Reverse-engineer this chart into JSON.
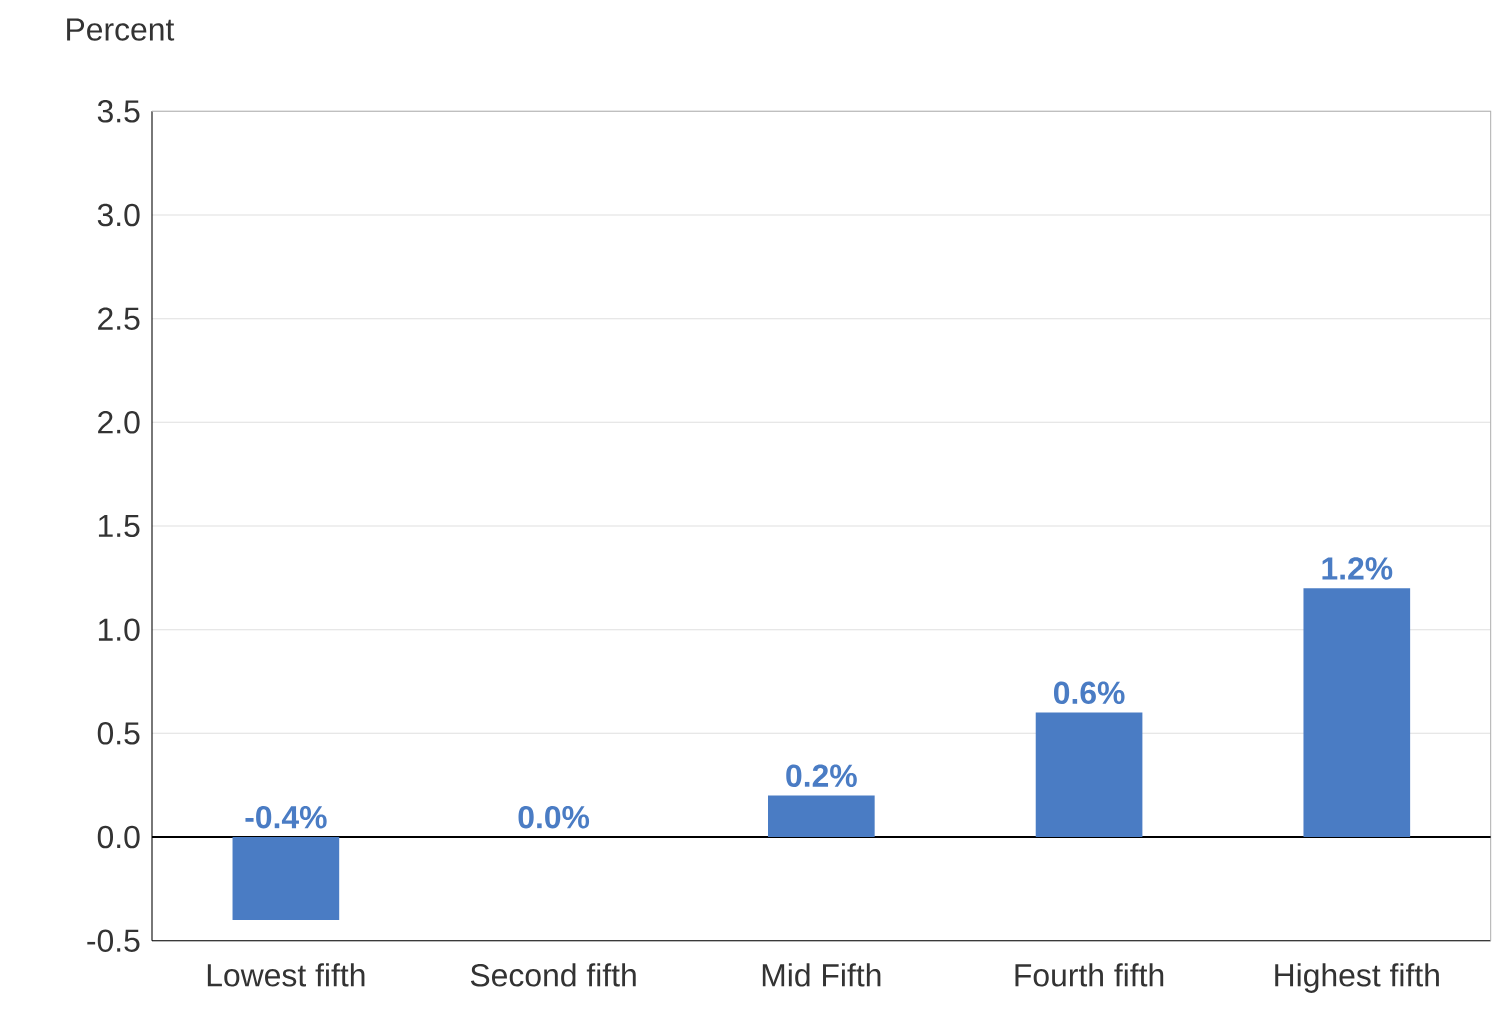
{
  "chart_data": {
    "type": "bar",
    "ylabel": "Percent",
    "categories": [
      "Lowest fifth",
      "Second fifth",
      "Mid Fifth",
      "Fourth fifth",
      "Highest fifth"
    ],
    "values": [
      -0.4,
      0.0,
      0.2,
      0.6,
      1.2
    ],
    "value_labels": [
      "-0.4%",
      "0.0%",
      "0.2%",
      "0.6%",
      "1.2%"
    ],
    "color": "#4a7cc4",
    "ylim": [
      -0.5,
      3.5
    ],
    "yticks": [
      -0.5,
      {
        "value": 0,
        "label": "0.0"
      },
      0.5,
      {
        "value": 1,
        "label": "1.0"
      },
      1.5,
      {
        "value": 2,
        "label": "2.0"
      },
      2.5,
      {
        "value": 3,
        "label": "3.0"
      },
      3.5
    ],
    "grid": "y",
    "ref_lines": [
      {
        "axis": "y",
        "value": 0,
        "color": "#000000"
      }
    ]
  }
}
